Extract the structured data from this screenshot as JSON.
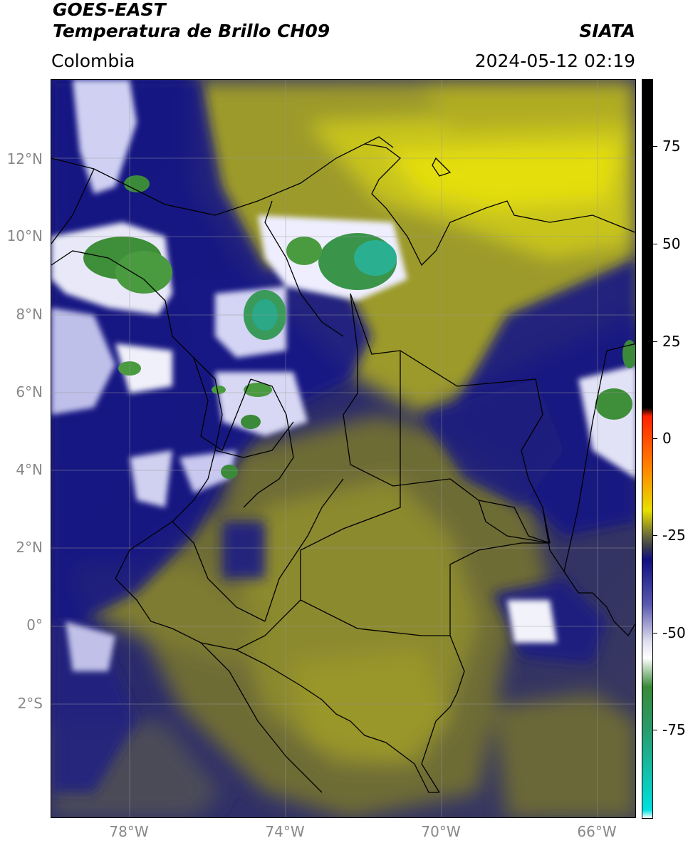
{
  "header": {
    "satellite": "GOES-EAST",
    "product": "Temperatura de Brillo CH09",
    "source": "SIATA",
    "region": "Colombia",
    "datetime": "2024-05-12 02:19"
  },
  "axes": {
    "lat_labels": [
      "12°N",
      "10°N",
      "8°N",
      "6°N",
      "4°N",
      "2°N",
      "0°",
      "2°S"
    ],
    "lon_labels": [
      "78°W",
      "74°W",
      "70°W",
      "66°W"
    ]
  },
  "colorbar": {
    "labels": [
      "75",
      "50",
      "25",
      "0",
      "-25",
      "-50",
      "-75"
    ],
    "stops": [
      {
        "value": 90,
        "color": "#000000"
      },
      {
        "value": 10,
        "color": "#000000"
      },
      {
        "value": 8,
        "color": "#ff2200"
      },
      {
        "value": -5,
        "color": "#ff8800"
      },
      {
        "value": -15,
        "color": "#e8e000"
      },
      {
        "value": -21,
        "color": "#6b6b3a"
      },
      {
        "value": -24,
        "color": "#3a3a50"
      },
      {
        "value": -27,
        "color": "#101080"
      },
      {
        "value": -38,
        "color": "#5a5ab0"
      },
      {
        "value": -47,
        "color": "#e0e0f0"
      },
      {
        "value": -51,
        "color": "#ffffff"
      },
      {
        "value": -58,
        "color": "#3a8a3a"
      },
      {
        "value": -68,
        "color": "#2a9a6a"
      },
      {
        "value": -88,
        "color": "#00e0e0"
      },
      {
        "value": -90,
        "color": "#ffffff"
      }
    ]
  },
  "colors": {
    "warm_band": "#9a9a2a",
    "dry_bright": "#e6e010",
    "cold_blue": "#161685",
    "neutral": "#4a4a55"
  }
}
